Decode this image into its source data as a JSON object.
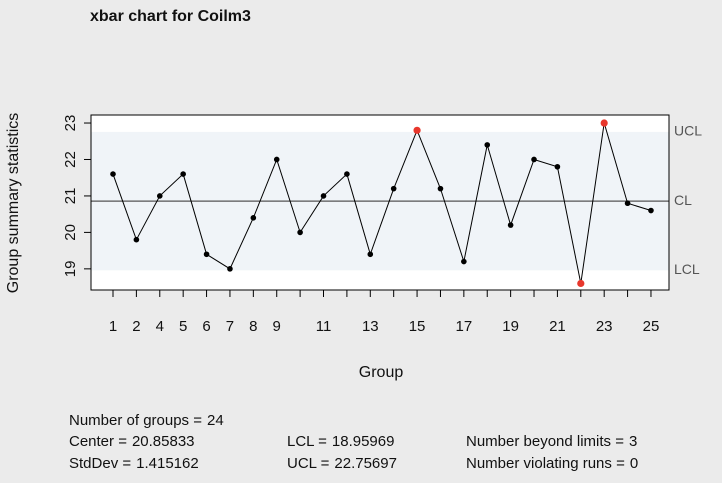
{
  "chart_data": {
    "type": "line",
    "title": "xbar chart for Coilm3",
    "x_label": "Group",
    "y_label": "Group summary statistics",
    "categories": [
      "1",
      "2",
      "4",
      "5",
      "6",
      "7",
      "8",
      "9",
      null,
      "11",
      null,
      "13",
      null,
      "15",
      null,
      "17",
      null,
      "19",
      null,
      "21",
      null,
      "23",
      null,
      "25"
    ],
    "values": [
      21.6,
      19.8,
      21.0,
      21.6,
      19.4,
      19.0,
      20.4,
      22.0,
      20.0,
      21.0,
      21.6,
      19.4,
      21.2,
      22.8,
      21.2,
      19.2,
      22.4,
      20.2,
      22.0,
      21.8,
      18.6,
      23.0,
      20.8,
      20.6
    ],
    "color": "#000000",
    "beyond_color": "#e8372c",
    "band_color": "#f0f4f8",
    "ylim": [
      18.42,
      23.22
    ],
    "yticks": [
      19,
      20,
      21,
      22,
      23
    ],
    "limit_labels": {
      "ucl": "UCL",
      "cl": "CL",
      "lcl": "LCL"
    },
    "stats": [
      {
        "label": "Number of groups =",
        "value": 24
      },
      {
        "label": "Center =",
        "value": 20.85833
      },
      {
        "label": "LCL =",
        "value": 18.95969
      },
      {
        "label": "Number beyond limits =",
        "value": 3
      },
      {
        "label": "StdDev =",
        "value": 1.415162
      },
      {
        "label": "UCL =",
        "value": 22.75697
      },
      {
        "label": "Number violating runs =",
        "value": 0
      }
    ]
  }
}
